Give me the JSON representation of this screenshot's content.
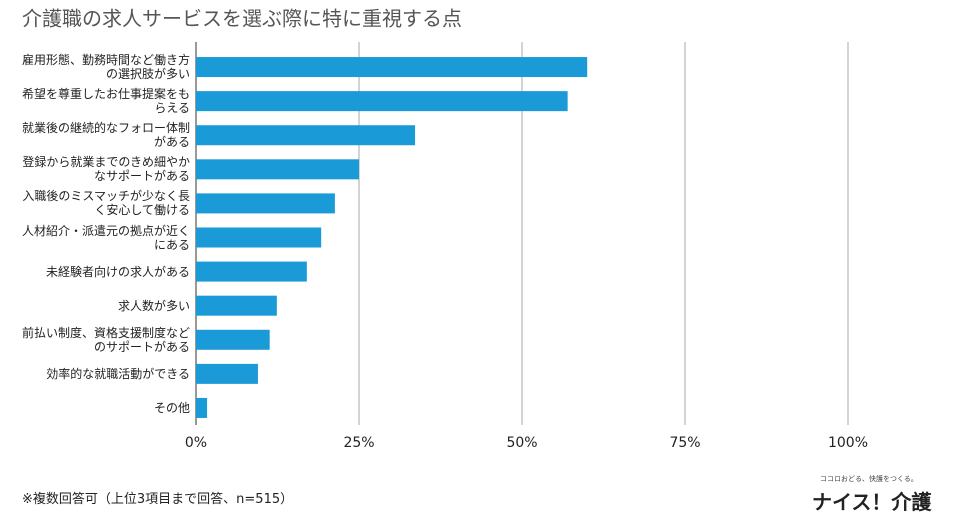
{
  "chart_data": {
    "type": "barh",
    "title": "介護職の求人サービスを選ぶ際に特に重視する点",
    "categories": [
      "雇用形態、勤務時間など働き方の選択肢が多い",
      "希望を尊重したお仕事提案をもらえる",
      "就業後の継続的なフォロー体制がある",
      "登録から就業までのきめ細やかなサポートがある",
      "入職後のミスマッチが少なく長く安心して働ける",
      "人材紹介・派遣元の拠点が近くにある",
      "未経験者向けの求人がある",
      "求人数が多い",
      "前払い制度、資格支援制度などのサポートがある",
      "効率的な就職活動ができる",
      "その他"
    ],
    "values": [
      60,
      57,
      33.6,
      25,
      21.3,
      19.2,
      17,
      12.4,
      11.3,
      9.5,
      1.7
    ],
    "color": "#1a9ad6",
    "xlim": [
      0,
      100
    ],
    "xticks": [
      {
        "value": 0,
        "label": "0%"
      },
      {
        "value": 25,
        "label": "25%"
      },
      {
        "value": 50,
        "label": "50%"
      },
      {
        "value": 75,
        "label": "75%"
      },
      {
        "value": 100,
        "label": "100%"
      }
    ],
    "grid": true
  },
  "footnote": "※複数回答可（上位3項目まで回答、n=515）",
  "logo": {
    "tagline": "ココロおどる、快護をつくる。",
    "name": "ナイス！介護"
  }
}
